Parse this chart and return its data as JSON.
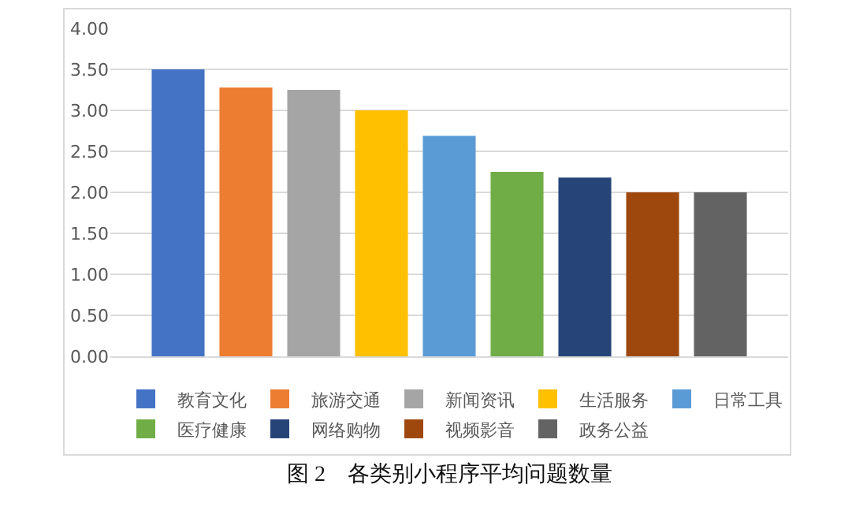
{
  "chart_data": {
    "type": "bar",
    "categories": [
      null
    ],
    "series": [
      {
        "name": "教育文化",
        "color": "#4472c4",
        "values": [
          3.5
        ]
      },
      {
        "name": "旅游交通",
        "color": "#ed7d31",
        "values": [
          3.28
        ]
      },
      {
        "name": "新闻资讯",
        "color": "#a5a5a5",
        "values": [
          3.25
        ]
      },
      {
        "name": "生活服务",
        "color": "#ffc000",
        "values": [
          3.0
        ]
      },
      {
        "name": "日常工具",
        "color": "#5b9bd5",
        "values": [
          2.69
        ]
      },
      {
        "name": "医疗健康",
        "color": "#70ad47",
        "values": [
          2.25
        ]
      },
      {
        "name": "网络购物",
        "color": "#264478",
        "values": [
          2.18
        ]
      },
      {
        "name": "视频影音",
        "color": "#9e480e",
        "values": [
          2.0
        ]
      },
      {
        "name": "政务公益",
        "color": "#636363",
        "values": [
          2.0
        ]
      }
    ],
    "ylim": [
      0,
      4
    ],
    "yticks": [
      {
        "value": 0,
        "label": "0.00"
      },
      {
        "value": 0.5,
        "label": "0.50"
      },
      {
        "value": 1,
        "label": "1.00"
      },
      {
        "value": 1.5,
        "label": "1.50"
      },
      {
        "value": 2,
        "label": "2.00"
      },
      {
        "value": 2.5,
        "label": "2.50"
      },
      {
        "value": 3,
        "label": "3.00"
      },
      {
        "value": 3.5,
        "label": "3.50"
      },
      {
        "value": 4,
        "label": "4.00"
      }
    ],
    "grid": "y",
    "legend": "bottom",
    "tick_labels": "y",
    "annotations": [
      "图 2　各类别小程序平均问题数量"
    ]
  }
}
